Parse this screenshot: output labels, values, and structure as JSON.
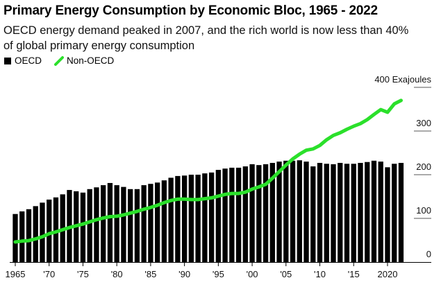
{
  "header": {
    "title": "Primary Energy Consumption by Economic Bloc, 1965 - 2022",
    "subtitle": "OECD energy demand peaked in 2007, and the rich world is now less than 40% of global primary energy consumption"
  },
  "legend": [
    {
      "label": "OECD",
      "marker": "square",
      "color": "#000000"
    },
    {
      "label": "Non-OECD",
      "marker": "line",
      "color": "#2be02b"
    }
  ],
  "chart_data": {
    "type": "bar",
    "title": "Primary Energy Consumption by Economic Bloc, 1965 - 2022",
    "subtitle": "OECD energy demand peaked in 2007, and the rich world is now less than 40% of global primary energy consumption",
    "xlabel": "",
    "ylabel": "Exajoules",
    "unit": "Exajoules",
    "ylim": [
      0,
      400
    ],
    "y_ticks": [
      {
        "value": 400,
        "label": "400 Exajoules"
      },
      {
        "value": 300,
        "label": "300"
      },
      {
        "value": 200,
        "label": "200"
      },
      {
        "value": 100,
        "label": "100"
      },
      {
        "value": 0,
        "label": "0"
      }
    ],
    "x_ticks": [
      {
        "year": 1965,
        "label": "1965"
      },
      {
        "year": 1970,
        "label": "'70"
      },
      {
        "year": 1975,
        "label": "'75"
      },
      {
        "year": 1980,
        "label": "'80"
      },
      {
        "year": 1985,
        "label": "'85"
      },
      {
        "year": 1990,
        "label": "'90"
      },
      {
        "year": 1995,
        "label": "'95"
      },
      {
        "year": 2000,
        "label": "'00"
      },
      {
        "year": 2005,
        "label": "'05"
      },
      {
        "year": 2010,
        "label": "'10"
      },
      {
        "year": 2015,
        "label": "'15"
      },
      {
        "year": 2020,
        "label": "2020"
      }
    ],
    "grid": true,
    "legend_position": "top-left",
    "x": [
      1965,
      1966,
      1967,
      1968,
      1969,
      1970,
      1971,
      1972,
      1973,
      1974,
      1975,
      1976,
      1977,
      1978,
      1979,
      1980,
      1981,
      1982,
      1983,
      1984,
      1985,
      1986,
      1987,
      1988,
      1989,
      1990,
      1991,
      1992,
      1993,
      1994,
      1995,
      1996,
      1997,
      1998,
      1999,
      2000,
      2001,
      2002,
      2003,
      2004,
      2005,
      2006,
      2007,
      2008,
      2009,
      2010,
      2011,
      2012,
      2013,
      2014,
      2015,
      2016,
      2017,
      2018,
      2019,
      2020,
      2021,
      2022
    ],
    "series": [
      {
        "name": "OECD",
        "type": "bar",
        "color": "#000000",
        "values": [
          110,
          116,
          121,
          128,
          136,
          143,
          148,
          155,
          165,
          162,
          159,
          167,
          171,
          176,
          181,
          176,
          172,
          167,
          167,
          176,
          179,
          182,
          187,
          193,
          197,
          198,
          200,
          200,
          203,
          205,
          211,
          214,
          216,
          216,
          219,
          224,
          222,
          224,
          227,
          230,
          232,
          232,
          233,
          230,
          219,
          227,
          225,
          224,
          227,
          225,
          225,
          227,
          229,
          232,
          230,
          217,
          225,
          227
        ]
      },
      {
        "name": "Non-OECD",
        "type": "line",
        "color": "#2be02b",
        "values": [
          46,
          48,
          49,
          53,
          58,
          65,
          69,
          74,
          79,
          83,
          87,
          92,
          97,
          101,
          104,
          105,
          108,
          112,
          116,
          121,
          125,
          130,
          136,
          141,
          144,
          144,
          143,
          143,
          145,
          147,
          151,
          155,
          157,
          157,
          160,
          167,
          172,
          178,
          192,
          207,
          222,
          236,
          247,
          256,
          259,
          267,
          280,
          290,
          296,
          304,
          311,
          317,
          326,
          338,
          349,
          343,
          362,
          370
        ]
      }
    ]
  }
}
